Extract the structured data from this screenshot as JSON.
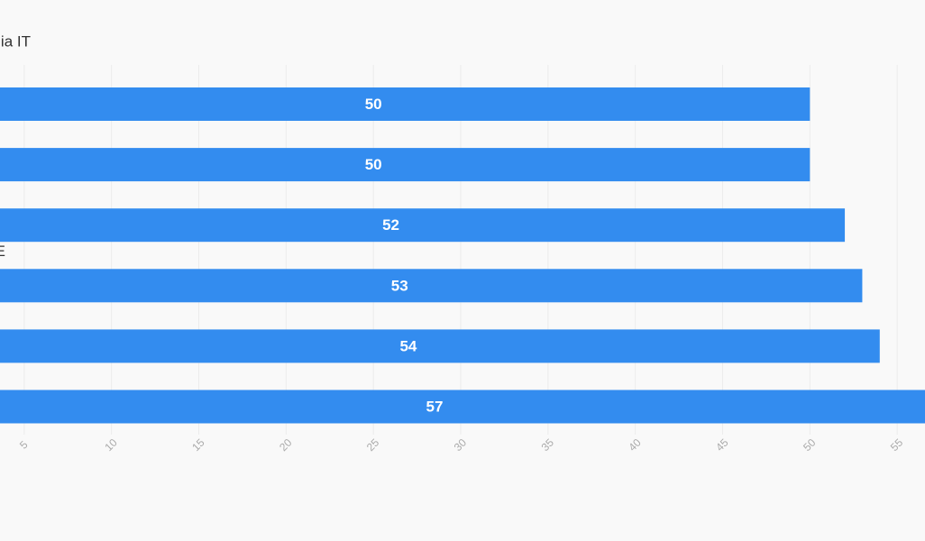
{
  "chart_data": {
    "type": "bar",
    "orientation": "horizontal",
    "categories": [
      "lia IT",
      null,
      null,
      "E",
      null,
      null
    ],
    "values": [
      50,
      50,
      52,
      53,
      54,
      57
    ],
    "color": "#338cef",
    "xlim": [
      0,
      60
    ],
    "xticks": [
      5,
      10,
      15,
      20,
      25,
      30,
      35,
      40,
      45,
      50,
      55
    ],
    "grid": true
  }
}
